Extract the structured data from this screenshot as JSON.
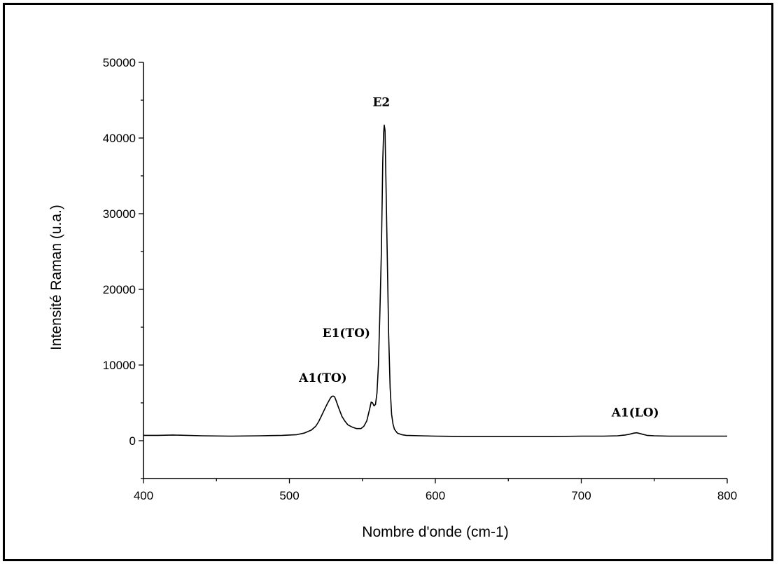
{
  "chart_data": {
    "type": "line",
    "title": "",
    "xlabel": "Nombre d'onde (cm-1)",
    "ylabel": "Intensité Raman (u.a.)",
    "xlim": [
      400,
      800
    ],
    "ylim": [
      -5000,
      50000
    ],
    "xticks": [
      400,
      500,
      600,
      700,
      800
    ],
    "yticks": [
      0,
      10000,
      20000,
      30000,
      40000,
      50000
    ],
    "grid": false,
    "legend": "none",
    "line_color": "#000000",
    "series": [
      {
        "x": [
          400,
          410,
          420,
          440,
          460,
          480,
          495,
          505,
          510,
          515,
          518,
          520,
          522,
          524,
          526,
          528,
          529,
          530,
          531,
          532,
          534,
          536,
          538,
          540,
          543,
          546,
          549,
          551,
          553,
          555,
          556,
          557,
          558,
          559,
          560,
          561,
          562,
          563,
          563.5,
          564,
          564.5,
          565,
          565.5,
          566,
          567,
          568,
          569,
          570,
          571,
          572,
          574,
          577,
          580,
          590,
          600,
          620,
          640,
          660,
          680,
          700,
          715,
          725,
          730,
          733,
          736,
          738,
          740,
          742,
          745,
          750,
          760,
          780,
          800
        ],
        "y": [
          700,
          700,
          750,
          650,
          600,
          650,
          700,
          800,
          1000,
          1400,
          1900,
          2500,
          3300,
          4100,
          4900,
          5600,
          5850,
          5900,
          5800,
          5300,
          4200,
          3200,
          2600,
          2100,
          1800,
          1600,
          1600,
          1900,
          2600,
          4200,
          5100,
          5000,
          4600,
          4800,
          6300,
          10000,
          17000,
          25000,
          31000,
          37000,
          40500,
          41700,
          41000,
          36000,
          25000,
          14000,
          7000,
          3500,
          2200,
          1500,
          1000,
          800,
          700,
          650,
          600,
          550,
          550,
          550,
          550,
          600,
          600,
          650,
          750,
          850,
          1000,
          1050,
          950,
          850,
          700,
          650,
          600,
          600,
          600
        ]
      }
    ],
    "annotations": [
      {
        "label": "E2",
        "x": 563,
        "y": 44200
      },
      {
        "label": "E1(TO)",
        "x": 539,
        "y": 13700
      },
      {
        "label": "A1(TO)",
        "x": 523,
        "y": 7800
      },
      {
        "label": "A1(LO)",
        "x": 737,
        "y": 3200
      }
    ]
  }
}
